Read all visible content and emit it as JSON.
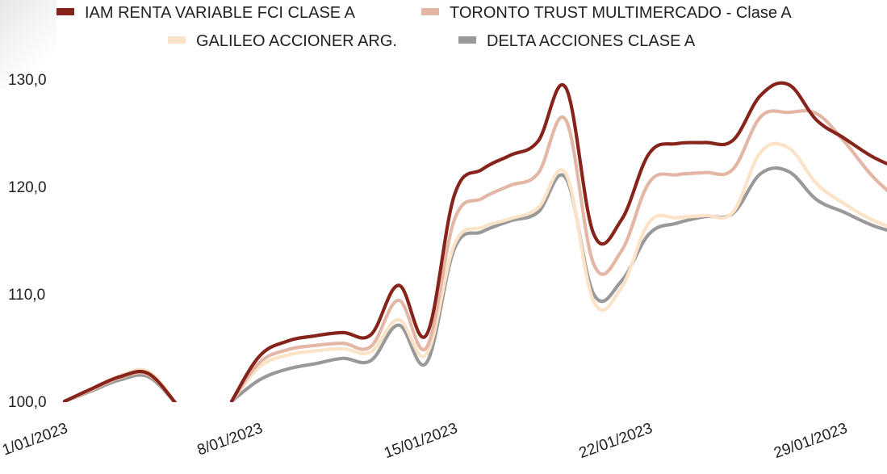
{
  "chart_data": {
    "type": "line",
    "title": "",
    "xlabel": "",
    "ylabel": "",
    "x": [
      "1/01/2023",
      "2/01/2023",
      "3/01/2023",
      "4/01/2023",
      "5/01/2023",
      "6/01/2023",
      "7/01/2023",
      "8/01/2023",
      "9/01/2023",
      "10/01/2023",
      "11/01/2023",
      "12/01/2023",
      "13/01/2023",
      "14/01/2023",
      "15/01/2023",
      "16/01/2023",
      "17/01/2023",
      "18/01/2023",
      "19/01/2023",
      "20/01/2023",
      "21/01/2023",
      "22/01/2023",
      "23/01/2023",
      "24/01/2023",
      "25/01/2023",
      "26/01/2023",
      "27/01/2023",
      "28/01/2023",
      "29/01/2023",
      "30/01/2023",
      "31/01/2023"
    ],
    "x_tick_labels": [
      "1/01/2023",
      "8/01/2023",
      "15/01/2023",
      "22/01/2023",
      "29/01/2023"
    ],
    "y_tick_labels": [
      "100,0",
      "110,0",
      "120,0",
      "130,0"
    ],
    "ylim": [
      100,
      130
    ],
    "grid": false,
    "legend_position": "top",
    "series": [
      {
        "name": "IAM RENTA VARIABLE FCI CLASE A",
        "color": "#86231a",
        "values": [
          100.0,
          101.2,
          102.3,
          102.6,
          99.8,
          null,
          100.0,
          104.2,
          105.6,
          106.1,
          106.4,
          106.2,
          110.8,
          106.2,
          119.2,
          121.6,
          122.9,
          124.2,
          129.2,
          115.6,
          116.9,
          123.1,
          124.0,
          124.1,
          124.3,
          128.5,
          129.5,
          126.2,
          124.5,
          122.8,
          121.6
        ]
      },
      {
        "name": "TORONTO TRUST MULTIMERCADO - Clase A",
        "color": "#e3b6a6",
        "values": [
          100.0,
          101.1,
          102.2,
          102.5,
          99.8,
          null,
          100.0,
          103.6,
          104.8,
          105.2,
          105.4,
          105.1,
          109.4,
          105.0,
          116.9,
          118.9,
          120.1,
          121.2,
          126.2,
          112.8,
          114.0,
          120.4,
          121.1,
          121.3,
          121.6,
          126.5,
          126.9,
          126.8,
          124.2,
          121.0,
          118.6
        ]
      },
      {
        "name": "GALILEO ACCIONER ARG.",
        "color": "#fbe3c8",
        "values": [
          100.0,
          101.2,
          102.4,
          102.8,
          99.8,
          null,
          100.0,
          103.2,
          104.3,
          104.7,
          104.9,
          104.6,
          107.6,
          104.4,
          114.6,
          116.2,
          117.0,
          118.0,
          121.2,
          109.3,
          110.6,
          116.7,
          117.1,
          117.3,
          117.6,
          123.2,
          123.6,
          120.3,
          118.4,
          116.9,
          115.9
        ]
      },
      {
        "name": "DELTA ACCIONES CLASE A",
        "color": "#999999",
        "values": [
          100.0,
          101.0,
          102.0,
          102.3,
          99.8,
          null,
          100.0,
          102.0,
          103.0,
          103.5,
          104.0,
          103.8,
          107.1,
          103.6,
          114.2,
          115.8,
          116.8,
          117.6,
          120.8,
          110.0,
          111.2,
          115.6,
          116.6,
          117.2,
          117.5,
          121.2,
          121.4,
          118.8,
          117.6,
          116.4,
          115.6
        ]
      }
    ]
  }
}
